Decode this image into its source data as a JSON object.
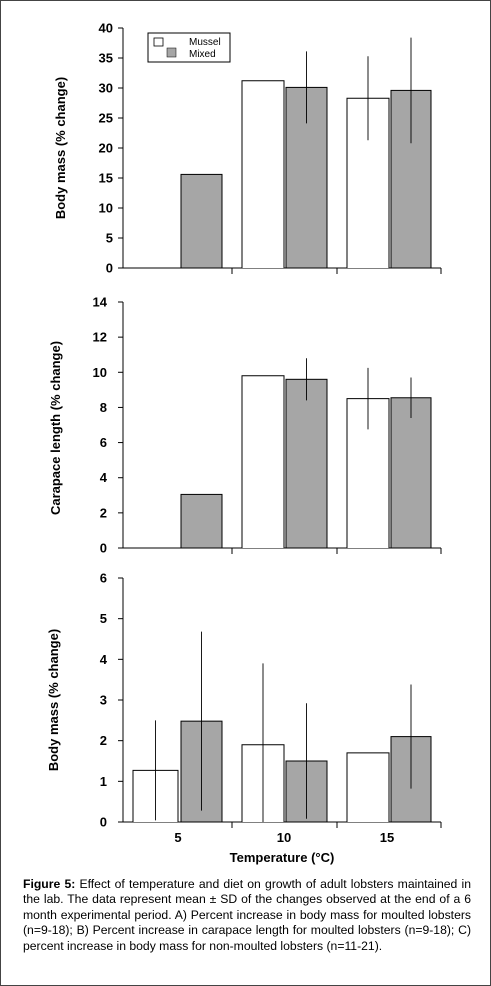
{
  "chart_data": [
    {
      "type": "bar",
      "categories": [
        "5",
        "10",
        "15"
      ],
      "series": [
        {
          "name": "Mussel",
          "values": [
            null,
            31.2,
            28.3
          ],
          "sd": [
            null,
            null,
            7
          ]
        },
        {
          "name": "Mixed",
          "values": [
            15.6,
            30.1,
            29.6
          ],
          "sd": [
            null,
            6,
            8.8
          ]
        }
      ],
      "ylabel": "Body mass (% change)",
      "ylim": [
        0,
        40
      ],
      "yticks": [
        "0",
        "5",
        "10",
        "15",
        "20",
        "25",
        "30",
        "35",
        "40"
      ],
      "legend": "top-left"
    },
    {
      "type": "bar",
      "categories": [
        "5",
        "10",
        "15"
      ],
      "series": [
        {
          "name": "Mussel",
          "values": [
            null,
            9.8,
            8.5
          ],
          "sd": [
            null,
            null,
            1.75
          ]
        },
        {
          "name": "Mixed",
          "values": [
            3.05,
            9.6,
            8.55
          ],
          "sd": [
            null,
            1.2,
            1.15
          ]
        }
      ],
      "ylabel": "Carapace length (% change)",
      "ylim": [
        0,
        14
      ],
      "yticks": [
        "0",
        "2",
        "4",
        "6",
        "8",
        "10",
        "12",
        "14"
      ]
    },
    {
      "type": "bar",
      "categories": [
        "5",
        "10",
        "15"
      ],
      "series": [
        {
          "name": "Mussel",
          "values": [
            1.27,
            1.9,
            1.7
          ],
          "sd": [
            1.23,
            2.0,
            null
          ]
        },
        {
          "name": "Mixed",
          "values": [
            2.48,
            1.5,
            2.1
          ],
          "sd": [
            2.2,
            1.42,
            1.28
          ]
        }
      ],
      "ylabel": "Body mass (% change)",
      "ylim": [
        0,
        6
      ],
      "yticks": [
        "0",
        "1",
        "2",
        "3",
        "4",
        "5",
        "6"
      ],
      "xlabel": "Temperature (°C)"
    }
  ],
  "caption": {
    "label": "Figure 5:",
    "text": "Effect of temperature and diet on growth of adult lobsters maintained in the lab. The data represent mean ± SD of the changes observed at the end of a 6 month experimental period. A) Percent increase in body mass for moulted lobsters (n=9-18); B) Percent increase in carapace length for moulted lobsters (n=9-18); C) percent increase in body mass for non-moulted lobsters (n=11-21)."
  },
  "colors": {
    "mussel": "#ffffff",
    "mixed": "#a6a6a6",
    "frame": "#000000"
  }
}
